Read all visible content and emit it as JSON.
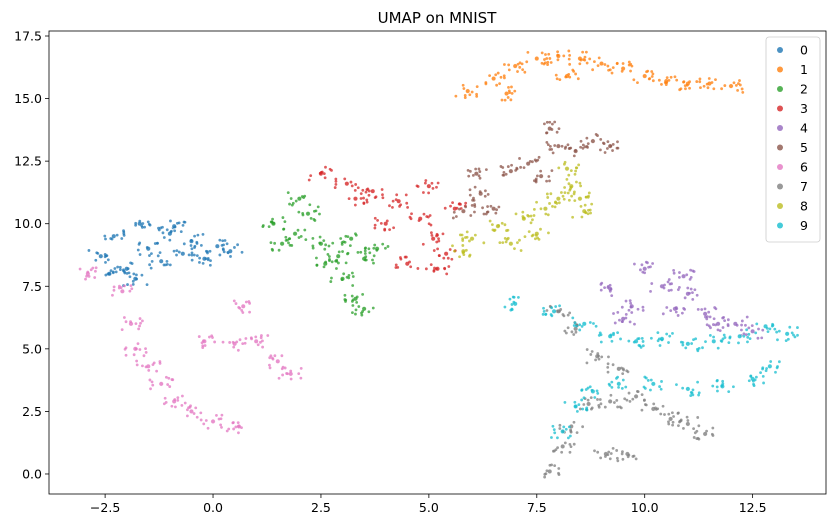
{
  "chart_data": {
    "type": "scatter",
    "title": "UMAP on MNIST",
    "xlabel": "",
    "ylabel": "",
    "xlim": [
      -3.8,
      14.2
    ],
    "ylim": [
      -0.8,
      17.7
    ],
    "xticks": [
      -2.5,
      0.0,
      2.5,
      5.0,
      7.5,
      10.0,
      12.5
    ],
    "xtick_labels": [
      "−2.5",
      "0.0",
      "2.5",
      "5.0",
      "7.5",
      "10.0",
      "12.5"
    ],
    "yticks": [
      0.0,
      2.5,
      5.0,
      7.5,
      10.0,
      12.5,
      15.0,
      17.5
    ],
    "ytick_labels": [
      "0.0",
      "2.5",
      "5.0",
      "7.5",
      "10.0",
      "12.5",
      "15.0",
      "17.5"
    ],
    "grid": false,
    "legend_position": "upper-right",
    "colors": [
      "#1f77b4",
      "#ff7f0e",
      "#2ca02c",
      "#d62728",
      "#9467bd",
      "#8c564b",
      "#e377c2",
      "#7f7f7f",
      "#bcbd22",
      "#17becf"
    ],
    "series": [
      {
        "name": "0",
        "points": [
          [
            -2.6,
            8.7
          ],
          [
            -2.3,
            9.5
          ],
          [
            -2.0,
            8.2
          ],
          [
            -1.7,
            10.0
          ],
          [
            -1.5,
            9.0
          ],
          [
            -1.2,
            8.5
          ],
          [
            -1.0,
            9.6
          ],
          [
            -0.7,
            8.8
          ],
          [
            -0.5,
            9.3
          ],
          [
            -0.2,
            8.6
          ],
          [
            0.1,
            9.1
          ],
          [
            0.4,
            8.9
          ],
          [
            -1.8,
            7.8
          ],
          [
            -2.4,
            8.0
          ],
          [
            -0.9,
            9.9
          ]
        ]
      },
      {
        "name": "1",
        "points": [
          [
            5.9,
            15.3
          ],
          [
            6.5,
            15.8
          ],
          [
            7.0,
            16.3
          ],
          [
            7.5,
            16.6
          ],
          [
            8.0,
            16.7
          ],
          [
            8.5,
            16.6
          ],
          [
            9.0,
            16.4
          ],
          [
            9.5,
            16.2
          ],
          [
            10.0,
            15.9
          ],
          [
            10.5,
            15.7
          ],
          [
            11.0,
            15.6
          ],
          [
            11.5,
            15.6
          ],
          [
            12.0,
            15.5
          ],
          [
            6.8,
            15.2
          ],
          [
            8.2,
            15.9
          ]
        ]
      },
      {
        "name": "2",
        "points": [
          [
            1.4,
            10.0
          ],
          [
            1.9,
            9.6
          ],
          [
            2.2,
            10.4
          ],
          [
            2.5,
            9.2
          ],
          [
            2.9,
            8.7
          ],
          [
            3.2,
            9.4
          ],
          [
            3.5,
            8.6
          ],
          [
            3.0,
            7.8
          ],
          [
            3.3,
            7.0
          ],
          [
            3.5,
            6.6
          ],
          [
            2.0,
            11.0
          ],
          [
            2.6,
            8.4
          ],
          [
            3.8,
            9.0
          ],
          [
            1.6,
            9.2
          ]
        ]
      },
      {
        "name": "3",
        "points": [
          [
            2.5,
            12.0
          ],
          [
            3.1,
            11.6
          ],
          [
            3.7,
            11.3
          ],
          [
            4.3,
            10.9
          ],
          [
            4.8,
            10.2
          ],
          [
            5.1,
            9.4
          ],
          [
            5.4,
            8.8
          ],
          [
            4.5,
            8.4
          ],
          [
            5.0,
            11.5
          ],
          [
            5.6,
            10.6
          ],
          [
            4.0,
            10.0
          ],
          [
            3.3,
            11.0
          ],
          [
            5.2,
            8.2
          ]
        ]
      },
      {
        "name": "4",
        "points": [
          [
            9.2,
            7.4
          ],
          [
            9.7,
            6.7
          ],
          [
            10.0,
            8.2
          ],
          [
            10.4,
            7.5
          ],
          [
            10.7,
            6.6
          ],
          [
            11.0,
            7.2
          ],
          [
            11.4,
            6.4
          ],
          [
            11.7,
            6.0
          ],
          [
            12.1,
            6.0
          ],
          [
            12.5,
            5.7
          ],
          [
            9.5,
            6.2
          ],
          [
            10.9,
            7.9
          ]
        ]
      },
      {
        "name": "5",
        "points": [
          [
            5.8,
            10.5
          ],
          [
            6.2,
            11.2
          ],
          [
            6.5,
            10.6
          ],
          [
            6.9,
            12.1
          ],
          [
            7.3,
            12.4
          ],
          [
            7.6,
            11.9
          ],
          [
            8.0,
            13.1
          ],
          [
            8.4,
            12.9
          ],
          [
            8.8,
            13.3
          ],
          [
            9.2,
            13.1
          ],
          [
            7.8,
            13.8
          ],
          [
            6.1,
            12.0
          ]
        ]
      },
      {
        "name": "6",
        "points": [
          [
            -2.9,
            8.0
          ],
          [
            -2.1,
            7.3
          ],
          [
            -1.9,
            6.0
          ],
          [
            -1.8,
            5.0
          ],
          [
            -1.5,
            4.3
          ],
          [
            -1.2,
            3.6
          ],
          [
            -0.9,
            2.9
          ],
          [
            -0.5,
            2.5
          ],
          [
            0.0,
            2.1
          ],
          [
            0.6,
            1.9
          ],
          [
            -0.2,
            5.3
          ],
          [
            0.5,
            5.2
          ],
          [
            1.0,
            5.3
          ],
          [
            1.5,
            4.5
          ],
          [
            1.8,
            4.0
          ],
          [
            0.7,
            6.7
          ]
        ]
      },
      {
        "name": "7",
        "points": [
          [
            7.8,
            0.1
          ],
          [
            8.1,
            1.1
          ],
          [
            8.3,
            1.9
          ],
          [
            8.7,
            2.8
          ],
          [
            9.2,
            2.9
          ],
          [
            9.8,
            3.1
          ],
          [
            10.2,
            2.6
          ],
          [
            10.6,
            2.2
          ],
          [
            11.0,
            2.0
          ],
          [
            11.4,
            1.6
          ],
          [
            9.1,
            0.8
          ],
          [
            9.6,
            0.8
          ],
          [
            8.0,
            6.5
          ],
          [
            8.4,
            5.8
          ],
          [
            8.9,
            4.7
          ],
          [
            9.4,
            4.2
          ]
        ]
      },
      {
        "name": "8",
        "points": [
          [
            6.0,
            9.4
          ],
          [
            6.6,
            9.9
          ],
          [
            7.2,
            10.2
          ],
          [
            7.7,
            10.6
          ],
          [
            8.0,
            11.0
          ],
          [
            8.3,
            11.5
          ],
          [
            8.5,
            11.0
          ],
          [
            8.2,
            12.2
          ],
          [
            6.9,
            9.2
          ],
          [
            7.5,
            9.6
          ],
          [
            5.8,
            8.9
          ],
          [
            8.6,
            10.5
          ]
        ]
      },
      {
        "name": "9",
        "points": [
          [
            7.0,
            6.8
          ],
          [
            7.9,
            6.5
          ],
          [
            8.6,
            6.0
          ],
          [
            9.2,
            5.5
          ],
          [
            9.8,
            5.3
          ],
          [
            10.4,
            5.4
          ],
          [
            11.0,
            5.2
          ],
          [
            11.6,
            5.3
          ],
          [
            12.2,
            5.5
          ],
          [
            12.8,
            5.9
          ],
          [
            13.3,
            5.6
          ],
          [
            12.9,
            4.3
          ],
          [
            12.5,
            3.8
          ],
          [
            11.8,
            3.5
          ],
          [
            11.0,
            3.4
          ],
          [
            10.2,
            3.6
          ],
          [
            9.4,
            3.6
          ],
          [
            8.8,
            3.3
          ],
          [
            8.4,
            2.7
          ],
          [
            8.1,
            1.7
          ]
        ]
      }
    ]
  }
}
